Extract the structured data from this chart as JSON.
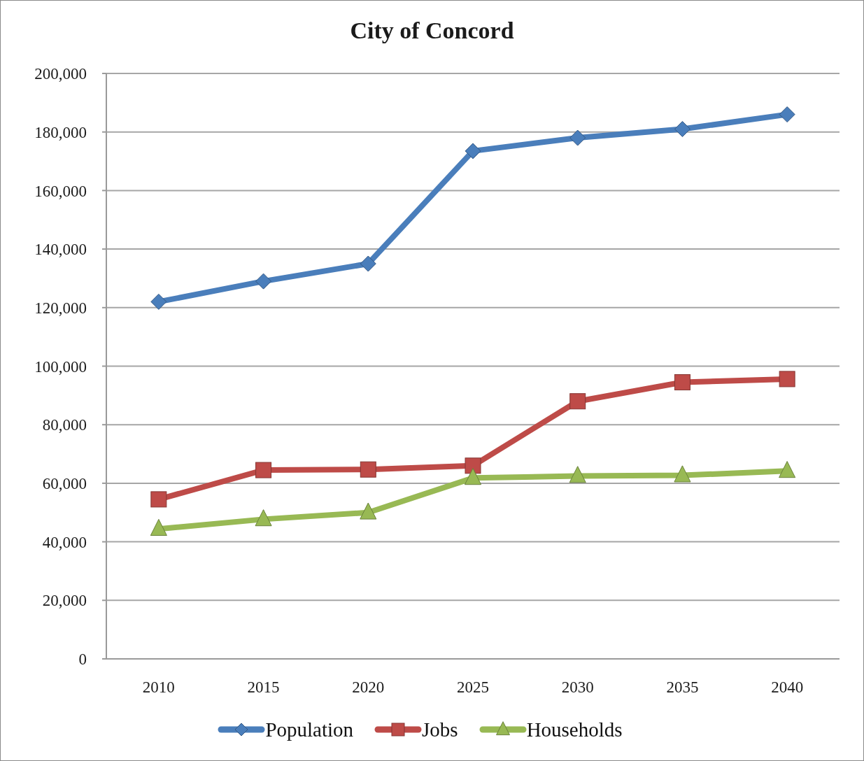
{
  "chart_data": {
    "type": "line",
    "title": "City of Concord",
    "categories": [
      "2010",
      "2015",
      "2020",
      "2025",
      "2030",
      "2035",
      "2040"
    ],
    "series": [
      {
        "name": "Population",
        "color": "#4a7ebb",
        "marker": "diamond",
        "values": [
          122000,
          129000,
          135000,
          173500,
          178000,
          181000,
          186000
        ]
      },
      {
        "name": "Jobs",
        "color": "#be4b48",
        "marker": "square",
        "values": [
          54500,
          64500,
          64700,
          66000,
          88000,
          94500,
          95600
        ]
      },
      {
        "name": "Households",
        "color": "#98b954",
        "marker": "triangle",
        "values": [
          44400,
          47700,
          50000,
          61800,
          62500,
          62700,
          64200
        ]
      }
    ],
    "ylim": [
      0,
      200000
    ],
    "yticks": [
      {
        "value": 0,
        "label": "0"
      },
      {
        "value": 20000,
        "label": "20,000"
      },
      {
        "value": 40000,
        "label": "40,000"
      },
      {
        "value": 60000,
        "label": "60,000"
      },
      {
        "value": 80000,
        "label": "80,000"
      },
      {
        "value": 100000,
        "label": "100,000"
      },
      {
        "value": 120000,
        "label": "120,000"
      },
      {
        "value": 140000,
        "label": "140,000"
      },
      {
        "value": 160000,
        "label": "160,000"
      },
      {
        "value": 180000,
        "label": "180,000"
      },
      {
        "value": 200000,
        "label": "200,000"
      }
    ],
    "grid": "y",
    "legend": "bottom",
    "line_style": "solid"
  }
}
